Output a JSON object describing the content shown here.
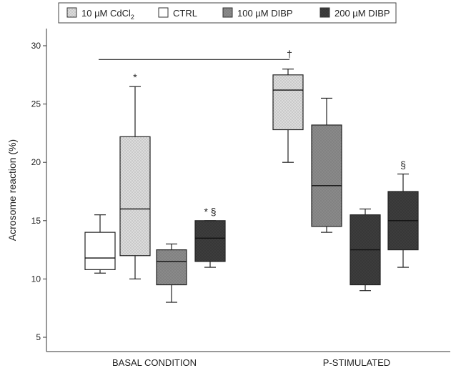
{
  "chart_data": {
    "type": "box",
    "ylabel": "Acrosome reaction (%)",
    "xlabel": "",
    "ylim": [
      3,
      31
    ],
    "yticks": [
      5,
      10,
      15,
      20,
      25,
      30
    ],
    "categories": [
      "BASAL CONDITION",
      "P-STIMULATED"
    ],
    "legend": [
      {
        "label": "10 µM CdCl",
        "subscript": "2",
        "color": "#d9d9d9",
        "pattern": "dots"
      },
      {
        "label": "CTRL",
        "subscript": "",
        "color": "#ffffff",
        "pattern": "none"
      },
      {
        "label": "100 µM DIBP",
        "subscript": "",
        "color": "#8c8c8c",
        "pattern": "dots"
      },
      {
        "label": "200 µM DIBP",
        "subscript": "",
        "color": "#3c3c3c",
        "pattern": "dots"
      }
    ],
    "boxes": [
      {
        "category": "BASAL CONDITION",
        "group": "CTRL",
        "min": 10.5,
        "q1": 10.8,
        "median": 11.8,
        "q3": 14.0,
        "max": 15.5,
        "marker": ""
      },
      {
        "category": "BASAL CONDITION",
        "group": "10 µM CdCl2",
        "min": 10.0,
        "q1": 12.0,
        "median": 16.0,
        "q3": 22.2,
        "max": 26.5,
        "marker": "*"
      },
      {
        "category": "BASAL CONDITION",
        "group": "100 µM DIBP",
        "min": 8.0,
        "q1": 9.5,
        "median": 11.5,
        "q3": 12.5,
        "max": 13.0,
        "marker": ""
      },
      {
        "category": "BASAL CONDITION",
        "group": "200 µM DIBP",
        "min": 11.0,
        "q1": 11.5,
        "median": 13.5,
        "q3": 15.0,
        "max": 15.0,
        "marker": "* §"
      },
      {
        "category": "P-STIMULATED",
        "group": "10 µM CdCl2",
        "min": 20.0,
        "q1": 22.8,
        "median": 26.2,
        "q3": 27.5,
        "max": 28.0,
        "marker": ""
      },
      {
        "category": "P-STIMULATED",
        "group": "100 µM DIBP",
        "min": 14.0,
        "q1": 14.5,
        "median": 18.0,
        "q3": 23.2,
        "max": 25.5,
        "marker": ""
      },
      {
        "category": "P-STIMULATED",
        "group": "200 µM DIBP",
        "min": 9.0,
        "q1": 9.5,
        "median": 12.5,
        "q3": 15.5,
        "max": 16.0,
        "marker": ""
      },
      {
        "category": "P-STIMULATED",
        "group": "200 µM DIBP",
        "min": 11.0,
        "q1": 12.5,
        "median": 15.0,
        "q3": 17.5,
        "max": 19.0,
        "marker": "§"
      }
    ],
    "bracket": {
      "y": 29.0,
      "marker": "†"
    },
    "grid": false
  }
}
